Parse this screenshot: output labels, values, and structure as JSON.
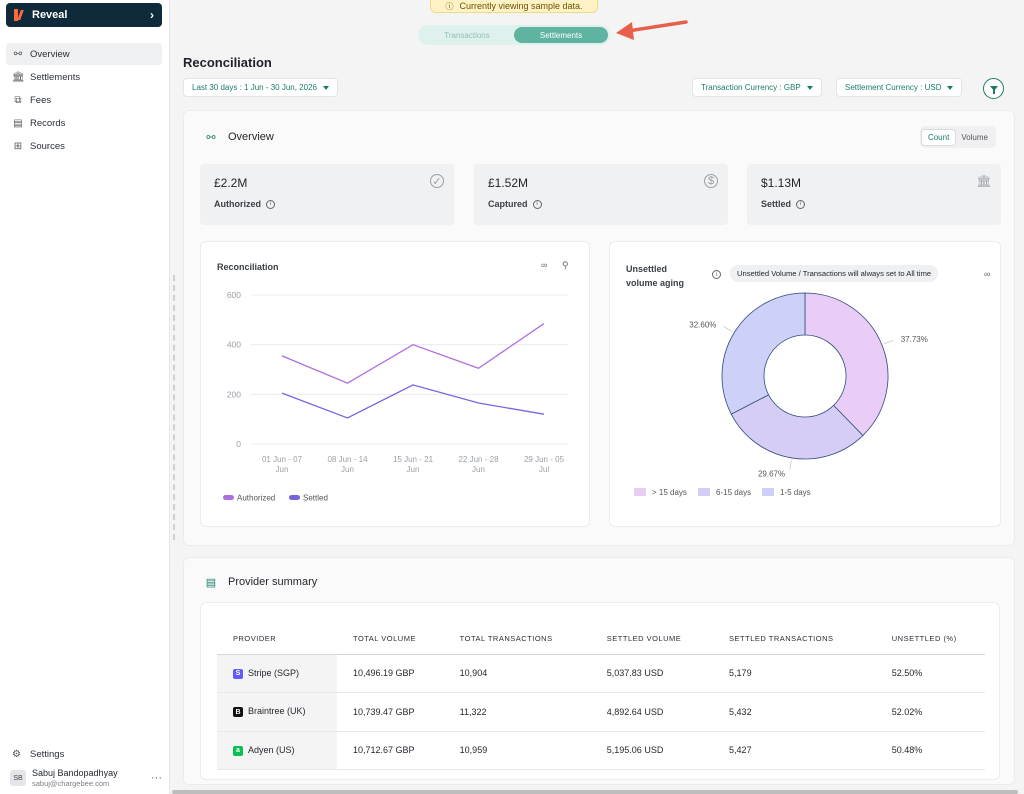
{
  "brand": {
    "name": "Reveal"
  },
  "sidebar": {
    "items": [
      {
        "label": "Overview",
        "icon": "overview-icon",
        "glyph": "⚯",
        "active": true
      },
      {
        "label": "Settlements",
        "icon": "bank-icon",
        "glyph": "🏛"
      },
      {
        "label": "Fees",
        "icon": "fees-icon",
        "glyph": "⧉"
      },
      {
        "label": "Records",
        "icon": "records-icon",
        "glyph": "▤"
      },
      {
        "label": "Sources",
        "icon": "sources-icon",
        "glyph": "⊞"
      }
    ],
    "settings_label": "Settings",
    "user": {
      "initials": "SB",
      "name": "Sabuj Bandopadhyay",
      "email": "sabuj@chargebee.com"
    }
  },
  "banner": {
    "text": "Currently viewing sample data."
  },
  "view_toggle": {
    "options": [
      "Transactions",
      "Settlements"
    ],
    "selected": "Settlements"
  },
  "header": {
    "title": "Reconciliation",
    "date_range": "Last 30 days :  1 Jun - 30 Jun, 2026",
    "transaction_currency": "Transaction Currency : GBP",
    "settlement_currency": "Settlement Currency : USD"
  },
  "overview": {
    "title": "Overview",
    "toggle": {
      "count": "Count",
      "volume": "Volume",
      "selected": "Count"
    },
    "stats": [
      {
        "value": "£2.2M",
        "label": "Authorized",
        "icon": "check-circle-icon"
      },
      {
        "value": "£1.52M",
        "label": "Captured",
        "icon": "dollar-circle-icon"
      },
      {
        "value": "$1.13M",
        "label": "Settled",
        "icon": "bank-icon"
      }
    ]
  },
  "reconciliation_chart": {
    "title": "Reconciliation",
    "chart_data": {
      "type": "line",
      "categories": [
        [
          "01 Jun - 07",
          "Jun"
        ],
        [
          "08 Jun - 14",
          "Jun"
        ],
        [
          "15 Jun - 21",
          "Jun"
        ],
        [
          "22 Jun - 28",
          "Jun"
        ],
        [
          "29 Jun - 05",
          "Jul"
        ]
      ],
      "series": [
        {
          "name": "Authorized",
          "color": "#b06ee0",
          "values": [
            355,
            245,
            400,
            305,
            485
          ]
        },
        {
          "name": "Settled",
          "color": "#7b63e0",
          "values": [
            205,
            105,
            238,
            165,
            120
          ]
        }
      ],
      "yticks": [
        0,
        200,
        400,
        600
      ],
      "ylim": [
        0,
        600
      ],
      "grid": true,
      "legend": "bottom-left"
    }
  },
  "aging_chart": {
    "title_line1": "Unsettled",
    "title_line2": "volume aging",
    "notice": "Unsettled Volume / Transactions will always set to All time",
    "chart_data": {
      "type": "pie",
      "labels": [
        "> 15 days",
        "6-15 days",
        "1-5 days"
      ],
      "values": [
        37.73,
        29.67,
        32.6
      ],
      "value_labels": [
        "37.73%",
        "29.67%",
        "32.60%"
      ],
      "colors": [
        "#e9cdf7",
        "#d6cdf7",
        "#cdd0f7"
      ],
      "legend": "bottom"
    }
  },
  "provider_summary": {
    "title": "Provider summary",
    "columns": [
      "PROVIDER",
      "TOTAL VOLUME",
      "TOTAL TRANSACTIONS",
      "SETTLED VOLUME",
      "SETTLED TRANSACTIONS",
      "UNSETTLED (%)"
    ],
    "rows": [
      {
        "provider": "Stripe (SGP)",
        "badge": "S",
        "badge_color": "#635bff",
        "total_volume": "10,496.19 GBP",
        "total_transactions": "10,904",
        "settled_volume": "5,037.83 USD",
        "settled_transactions": "5,179",
        "unsettled": "52.50%"
      },
      {
        "provider": "Braintree (UK)",
        "badge": "B",
        "badge_color": "#111111",
        "total_volume": "10,739.47 GBP",
        "total_transactions": "11,322",
        "settled_volume": "4,892.64 USD",
        "settled_transactions": "5,432",
        "unsettled": "52.02%"
      },
      {
        "provider": "Adyen (US)",
        "badge": "a",
        "badge_color": "#0abf53",
        "total_volume": "10,712.67 GBP",
        "total_transactions": "10,959",
        "settled_volume": "5,195.06 USD",
        "settled_transactions": "5,427",
        "unsettled": "50.48%"
      }
    ]
  }
}
